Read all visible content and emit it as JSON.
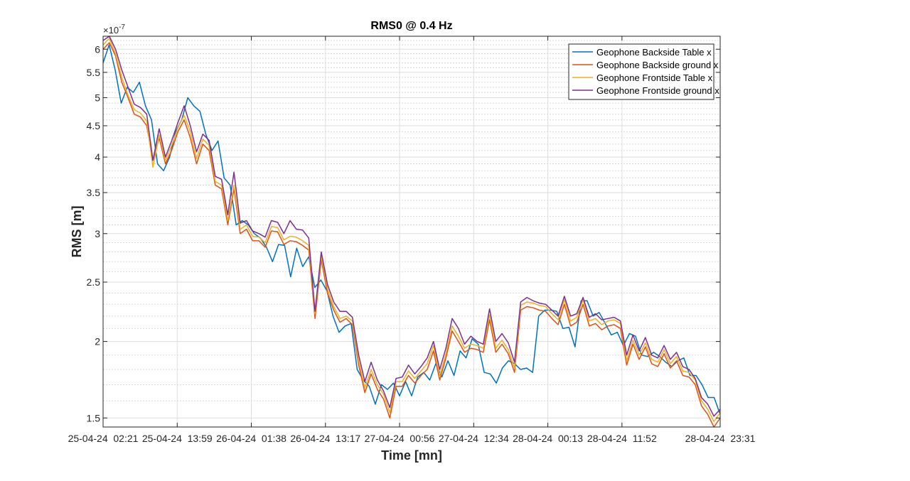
{
  "chart_data": {
    "type": "line",
    "title": "RMS0 @ 0.4 Hz",
    "xlabel": "Time [mn]",
    "ylabel": "RMS [m]",
    "y_multiplier": "×10",
    "y_exponent": "-7",
    "yscale": "log",
    "ylim": [
      1.45,
      6.3
    ],
    "xlim": [
      0,
      111
    ],
    "grid": true,
    "legend_position": "top-right",
    "x_ticks": [
      {
        "x": 0,
        "label": "25-04-24  02:21"
      },
      {
        "x": 13.333,
        "label": "25-04-24  13:59"
      },
      {
        "x": 26.667,
        "label": "26-04-24  01:38"
      },
      {
        "x": 40,
        "label": "26-04-24  13:17"
      },
      {
        "x": 53.333,
        "label": "27-04-24  00:56"
      },
      {
        "x": 66.667,
        "label": "27-04-24  12:34"
      },
      {
        "x": 80,
        "label": "28-04-24  00:13"
      },
      {
        "x": 93.333,
        "label": "28-04-24  11:52"
      },
      {
        "x": 111,
        "label": "28-04-24  23:31"
      }
    ],
    "y_ticks": [
      {
        "v": 1.5,
        "label": "1.5"
      },
      {
        "v": 2,
        "label": "2"
      },
      {
        "v": 2.5,
        "label": "2.5"
      },
      {
        "v": 3,
        "label": "3"
      },
      {
        "v": 3.5,
        "label": "3.5"
      },
      {
        "v": 4,
        "label": "4"
      },
      {
        "v": 4.5,
        "label": "4.5"
      },
      {
        "v": 5,
        "label": "5"
      },
      {
        "v": 5.5,
        "label": "5.5"
      },
      {
        "v": 6,
        "label": "6"
      }
    ],
    "series": [
      {
        "name": "Geophone Backside Table x",
        "color": "#0072BD",
        "values": [
          5.7,
          6.1,
          5.55,
          4.9,
          5.2,
          5.1,
          5.3,
          4.85,
          4.6,
          3.9,
          3.8,
          4.0,
          4.4,
          4.6,
          5.0,
          4.85,
          4.75,
          4.35,
          4.1,
          4.25,
          3.7,
          3.6,
          3.1,
          3.15,
          3.1,
          3.0,
          2.95,
          2.85,
          2.7,
          2.88,
          2.87,
          2.55,
          2.84,
          2.65,
          2.75,
          2.45,
          2.52,
          2.42,
          2.2,
          2.07,
          2.12,
          2.14,
          1.8,
          1.73,
          1.69,
          1.58,
          1.7,
          1.67,
          1.71,
          1.63,
          1.72,
          1.63,
          1.75,
          1.78,
          1.73,
          1.84,
          1.75,
          1.86,
          1.76,
          1.93,
          1.88,
          2.02,
          1.98,
          1.78,
          1.77,
          1.71,
          1.81,
          1.86,
          1.84,
          1.8,
          1.81,
          1.78,
          2.2,
          2.25,
          2.25,
          2.24,
          2.1,
          2.11,
          1.96,
          2.33,
          2.33,
          2.2,
          2.23,
          2.14,
          2.05,
          2.07,
          1.97,
          2.06,
          2.04,
          1.9,
          1.89,
          1.92,
          1.89,
          1.85,
          1.82,
          1.86,
          1.88,
          1.76,
          1.76,
          1.7,
          1.62,
          1.62,
          1.52
        ]
      },
      {
        "name": "Geophone Backside ground x",
        "color": "#D95319",
        "values": [
          6.0,
          6.15,
          5.85,
          5.3,
          5.0,
          4.7,
          4.65,
          4.5,
          3.95,
          4.3,
          3.9,
          4.1,
          4.4,
          4.6,
          4.3,
          3.9,
          4.2,
          4.1,
          3.6,
          3.55,
          3.1,
          3.55,
          3.0,
          3.05,
          2.92,
          2.92,
          2.85,
          3.03,
          3.02,
          2.88,
          2.92,
          2.91,
          2.87,
          2.82,
          2.18,
          2.72,
          2.4,
          2.25,
          2.15,
          2.18,
          2.13,
          1.83,
          1.65,
          1.77,
          1.67,
          1.61,
          1.5,
          1.69,
          1.69,
          1.76,
          1.71,
          1.76,
          1.8,
          1.93,
          1.73,
          1.88,
          2.08,
          2.0,
          1.92,
          1.95,
          1.94,
          1.92,
          2.17,
          1.92,
          1.98,
          1.91,
          1.78,
          2.25,
          2.28,
          2.27,
          2.25,
          2.24,
          2.18,
          2.13,
          2.3,
          2.12,
          2.15,
          2.3,
          2.12,
          2.14,
          2.09,
          2.12,
          2.13,
          2.1,
          1.83,
          1.98,
          1.87,
          1.96,
          1.84,
          1.82,
          1.91,
          1.81,
          1.86,
          1.76,
          1.75,
          1.7,
          1.57,
          1.52,
          1.45,
          1.5
        ]
      },
      {
        "name": "Geophone Frontside Table x",
        "color": "#EDB120",
        "values": [
          6.1,
          6.25,
          5.9,
          5.4,
          5.05,
          4.78,
          4.72,
          4.58,
          3.85,
          4.35,
          3.95,
          4.18,
          4.46,
          4.68,
          4.4,
          3.98,
          4.28,
          4.18,
          3.65,
          3.6,
          3.15,
          3.6,
          3.05,
          3.1,
          2.97,
          2.96,
          2.9,
          3.08,
          3.07,
          2.93,
          2.97,
          2.96,
          2.92,
          2.87,
          2.22,
          2.76,
          2.44,
          2.28,
          2.18,
          2.2,
          2.16,
          1.86,
          1.68,
          1.8,
          1.7,
          1.64,
          1.53,
          1.72,
          1.72,
          1.79,
          1.74,
          1.79,
          1.84,
          1.97,
          1.76,
          1.91,
          2.12,
          2.04,
          1.95,
          1.98,
          1.97,
          1.95,
          2.21,
          1.95,
          2.01,
          1.94,
          1.81,
          2.29,
          2.32,
          2.31,
          2.29,
          2.28,
          2.22,
          2.17,
          2.34,
          2.16,
          2.19,
          2.34,
          2.16,
          2.18,
          2.13,
          2.16,
          2.17,
          2.14,
          1.86,
          2.01,
          1.9,
          1.99,
          1.87,
          1.85,
          1.94,
          1.84,
          1.89,
          1.79,
          1.78,
          1.73,
          1.6,
          1.55,
          1.48,
          1.53
        ]
      },
      {
        "name": "Geophone Frontside ground x",
        "color": "#7E2F8E",
        "values": [
          6.2,
          6.3,
          6.0,
          5.55,
          5.2,
          4.88,
          4.82,
          4.7,
          3.95,
          4.45,
          4.0,
          4.25,
          4.55,
          4.85,
          4.5,
          4.08,
          4.36,
          4.26,
          3.72,
          3.68,
          3.22,
          3.78,
          3.12,
          3.15,
          3.03,
          3.0,
          2.96,
          3.15,
          3.13,
          3.0,
          3.15,
          3.05,
          3.04,
          2.95,
          2.24,
          2.8,
          2.48,
          2.32,
          2.24,
          2.24,
          2.19,
          1.9,
          1.72,
          1.85,
          1.73,
          1.66,
          1.56,
          1.74,
          1.75,
          1.83,
          1.77,
          1.82,
          1.88,
          2.0,
          1.8,
          1.95,
          2.18,
          2.1,
          1.98,
          2.04,
          2.0,
          1.98,
          2.26,
          2.0,
          2.06,
          1.99,
          1.85,
          2.32,
          2.36,
          2.33,
          2.31,
          2.3,
          2.25,
          2.2,
          2.37,
          2.2,
          2.22,
          2.36,
          2.19,
          2.22,
          2.17,
          2.18,
          2.19,
          2.16,
          1.9,
          2.05,
          1.93,
          2.03,
          1.9,
          1.88,
          1.97,
          1.87,
          1.92,
          1.82,
          1.8,
          1.74,
          1.62,
          1.58,
          1.51,
          1.55
        ]
      }
    ]
  }
}
